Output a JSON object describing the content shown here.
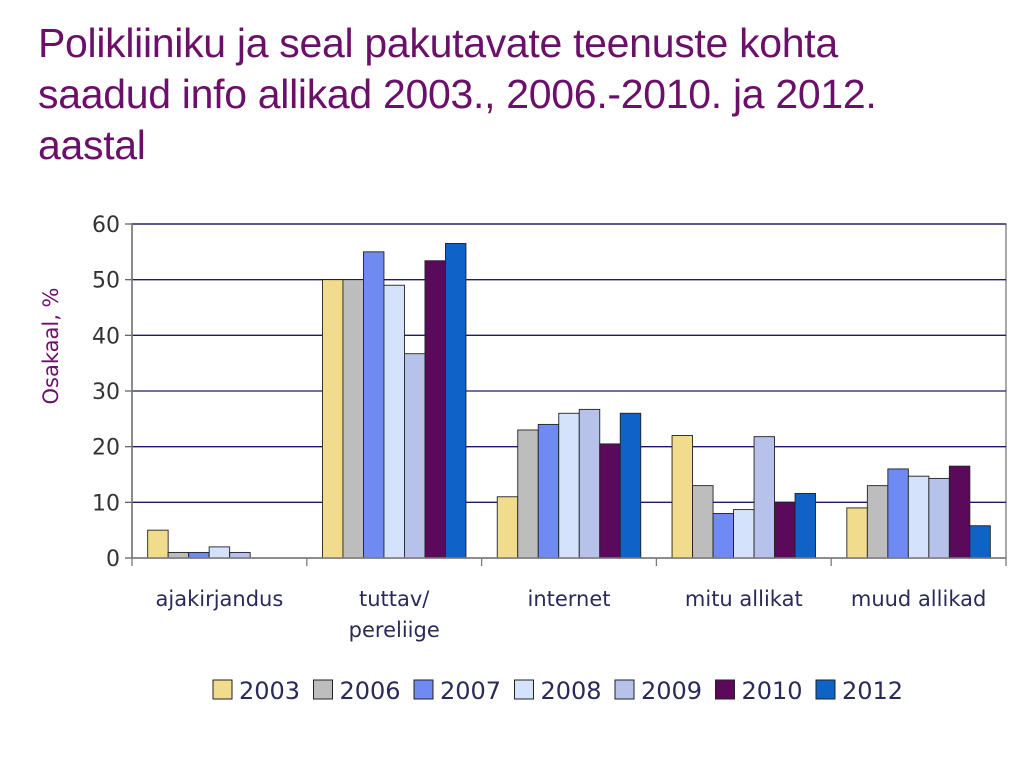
{
  "slide": {
    "title_lines": [
      "Polikliiniku ja seal pakutavate teenuste kohta",
      "saadud info allikad 2003., 2006.-2010. ja 2012.",
      "aastal"
    ]
  },
  "chart_data": {
    "type": "bar",
    "title": "Polikliiniku ja seal pakutavate teenuste kohta saadud info allikad 2003., 2006.-2010. ja 2012. aastal",
    "xlabel": "",
    "ylabel": "Osakaal, %",
    "ylim": [
      0,
      60
    ],
    "yticks": [
      0,
      10,
      20,
      30,
      40,
      50,
      60
    ],
    "grid": true,
    "legend_position": "bottom",
    "categories": [
      [
        "ajakirjandus"
      ],
      [
        "tuttav/",
        "pereliige"
      ],
      [
        "internet"
      ],
      [
        "mitu allikat"
      ],
      [
        "muud allikad"
      ]
    ],
    "series": [
      {
        "name": "2003",
        "color": "#f0dc8c",
        "values": [
          5,
          50,
          11,
          22,
          9
        ]
      },
      {
        "name": "2006",
        "color": "#bdbdbd",
        "values": [
          1,
          50,
          23,
          13,
          13
        ]
      },
      {
        "name": "2007",
        "color": "#6f8af2",
        "values": [
          1,
          55,
          24,
          8,
          16
        ]
      },
      {
        "name": "2008",
        "color": "#d4e2fb",
        "values": [
          2,
          49,
          26,
          8.7,
          14.7
        ]
      },
      {
        "name": "2009",
        "color": "#b6c2ea",
        "values": [
          1,
          36.7,
          26.7,
          21.8,
          14.3
        ]
      },
      {
        "name": "2010",
        "color": "#5b0a5b",
        "values": [
          0,
          53.4,
          20.5,
          10,
          16.5
        ]
      },
      {
        "name": "2012",
        "color": "#0f63c8",
        "values": [
          0,
          56.5,
          26,
          11.6,
          5.8
        ]
      }
    ]
  }
}
